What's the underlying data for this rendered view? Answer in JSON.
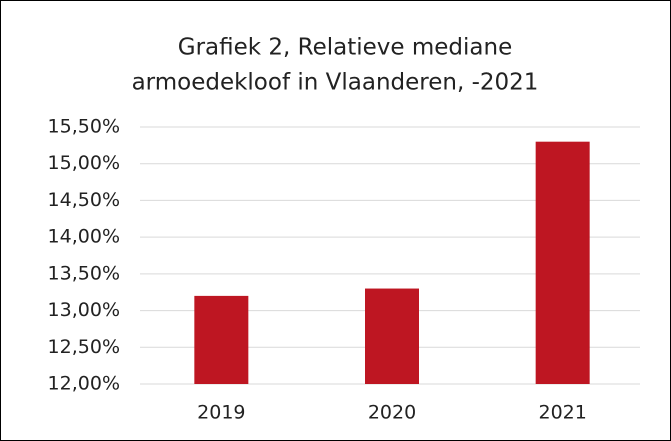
{
  "chart_data": {
    "type": "bar",
    "title": [
      "Grafiek 2, Relatieve mediane",
      "armoedekloof in Vlaanderen, -2021"
    ],
    "categories": [
      "2019",
      "2020",
      "2021"
    ],
    "values": [
      13.2,
      13.3,
      15.3
    ],
    "color": "#be1622",
    "ylim": [
      12,
      15.5
    ],
    "yticks": [
      {
        "value": 12,
        "label": "12,00%"
      },
      {
        "value": 12.5,
        "label": "12,50%"
      },
      {
        "value": 13,
        "label": "13,00%"
      },
      {
        "value": 13.5,
        "label": "13,50%"
      },
      {
        "value": 14,
        "label": "14,00%"
      },
      {
        "value": 14.5,
        "label": "14,50%"
      },
      {
        "value": 15,
        "label": "15,00%"
      },
      {
        "value": 15.5,
        "label": "15,50%"
      }
    ],
    "grid": true
  }
}
